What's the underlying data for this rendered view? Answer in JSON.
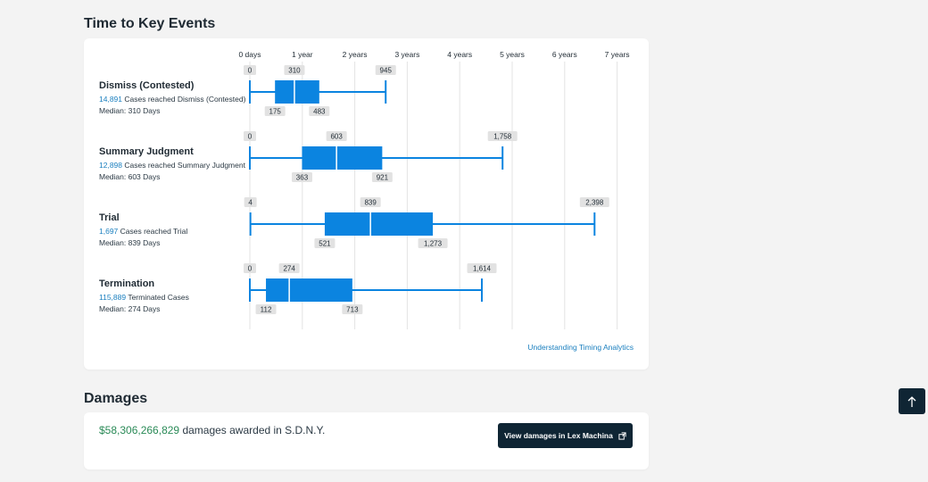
{
  "timing": {
    "title": "Time to Key Events",
    "link_label": "Understanding Timing Analytics"
  },
  "chart_data": {
    "type": "boxplot",
    "unit": "days",
    "x_axis_ticks": [
      "0 days",
      "1 year",
      "2 years",
      "3 years",
      "4 years",
      "5 years",
      "6 years",
      "7 years"
    ],
    "xlim": [
      0,
      2555
    ],
    "grid": true,
    "events": [
      {
        "name": "Dismiss (Contested)",
        "count": "14,891",
        "count_suffix": "Cases reached Dismiss (Contested)",
        "median_line": "Median: 310 Days",
        "min": 0,
        "q1": 175,
        "median": 310,
        "q3": 483,
        "max": 945,
        "min_label": "0",
        "q1_label": "175",
        "median_label": "310",
        "q3_label": "483",
        "max_label": "945"
      },
      {
        "name": "Summary Judgment",
        "count": "12,898",
        "count_suffix": "Cases reached Summary Judgment",
        "median_line": "Median: 603 Days",
        "min": 0,
        "q1": 363,
        "median": 603,
        "q3": 921,
        "max": 1758,
        "min_label": "0",
        "q1_label": "363",
        "median_label": "603",
        "q3_label": "921",
        "max_label": "1,758"
      },
      {
        "name": "Trial",
        "count": "1,697",
        "count_suffix": "Cases reached Trial",
        "median_line": "Median: 839 Days",
        "min": 4,
        "q1": 521,
        "median": 839,
        "q3": 1273,
        "max": 2398,
        "min_label": "4",
        "q1_label": "521",
        "median_label": "839",
        "q3_label": "1,273",
        "max_label": "2,398"
      },
      {
        "name": "Termination",
        "count": "115,889",
        "count_suffix": "Terminated Cases",
        "median_line": "Median: 274 Days",
        "min": 0,
        "q1": 112,
        "median": 274,
        "q3": 713,
        "max": 1614,
        "min_label": "0",
        "q1_label": "112",
        "median_label": "274",
        "q3_label": "713",
        "max_label": "1,614"
      }
    ]
  },
  "damages": {
    "title": "Damages",
    "amount": "$58,306,266,829",
    "text": "damages awarded in S.D.N.Y.",
    "button_label": "View damages in Lex Machina"
  },
  "colors": {
    "box": "#0b84e0",
    "label_bg": "#e2e2e2",
    "grid": "#e3e3e3",
    "count_link": "#1a7fbf",
    "damages_amount": "#2a8a57",
    "button_bg": "#0f2534"
  },
  "icons": {
    "external_link": "external-link-icon",
    "scroll_top": "arrow-up-icon"
  }
}
